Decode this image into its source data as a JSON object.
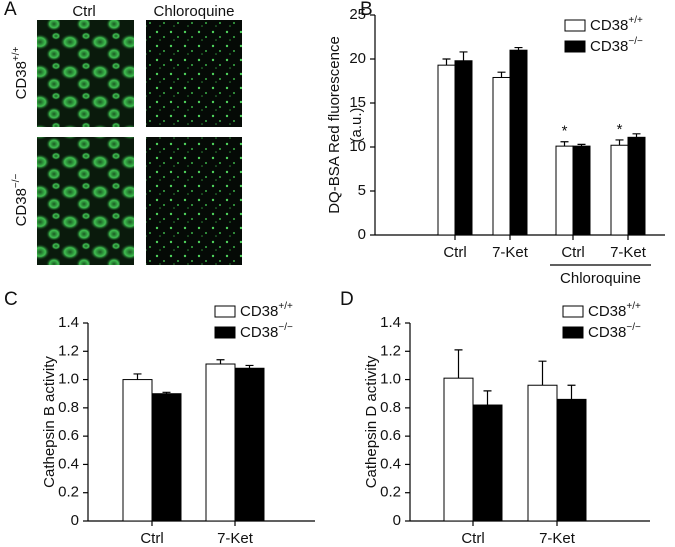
{
  "panel_a": {
    "panel_label": "A",
    "columns": [
      "Ctrl",
      "Chloroquine"
    ],
    "rows": [
      "CD38+/+",
      "CD38−/−"
    ]
  },
  "chart_data": [
    {
      "type": "bar",
      "panel_label": "B",
      "ylabel": [
        "DQ-BSA Red fluorescence",
        "(a.u.)"
      ],
      "categories": [
        "Ctrl",
        "7-Ket",
        "Ctrl",
        "7-Ket"
      ],
      "category_groups": [
        null,
        null,
        "Chloroquine",
        "Chloroquine"
      ],
      "ylim": [
        0,
        25
      ],
      "yticks": [
        0,
        5,
        10,
        15,
        20,
        25
      ],
      "legend": "upper right",
      "series": [
        {
          "name": "CD38+/+",
          "color": "#ffffff",
          "values": [
            19.3,
            17.9,
            10.1,
            10.2
          ],
          "errors": [
            0.7,
            0.6,
            0.5,
            0.6
          ],
          "markers": [
            null,
            null,
            "*",
            "*"
          ]
        },
        {
          "name": "CD38−/−",
          "color": "#000000",
          "values": [
            19.8,
            21.0,
            10.1,
            11.1
          ],
          "errors": [
            1.0,
            0.3,
            0.2,
            0.4
          ]
        }
      ]
    },
    {
      "type": "bar",
      "panel_label": "C",
      "ylabel": [
        "Cathepsin B activity"
      ],
      "categories": [
        "Ctrl",
        "7-Ket"
      ],
      "ylim": [
        0,
        1.4
      ],
      "yticks": [
        0,
        0.2,
        0.4,
        0.6,
        0.8,
        {
          "value": 1,
          "label": "1.0"
        },
        1.2,
        1.4
      ],
      "legend": "upper right",
      "series": [
        {
          "name": "CD38+/+",
          "color": "#ffffff",
          "values": [
            1.0,
            1.11
          ],
          "errors": [
            0.04,
            0.03
          ]
        },
        {
          "name": "CD38−/−",
          "color": "#000000",
          "values": [
            0.9,
            1.08
          ],
          "errors": [
            0.01,
            0.02
          ]
        }
      ]
    },
    {
      "type": "bar",
      "panel_label": "D",
      "ylabel": [
        "Cathepsin D activity"
      ],
      "categories": [
        "Ctrl",
        "7-Ket"
      ],
      "ylim": [
        0,
        1.4
      ],
      "yticks": [
        0,
        0.2,
        0.4,
        0.6,
        0.8,
        {
          "value": 1,
          "label": "1.0"
        },
        1.2,
        1.4
      ],
      "legend": "upper right",
      "series": [
        {
          "name": "CD38+/+",
          "color": "#ffffff",
          "values": [
            1.01,
            0.96
          ],
          "errors": [
            0.2,
            0.17
          ]
        },
        {
          "name": "CD38−/−",
          "color": "#000000",
          "values": [
            0.82,
            0.86
          ],
          "errors": [
            0.1,
            0.1
          ]
        }
      ]
    }
  ]
}
